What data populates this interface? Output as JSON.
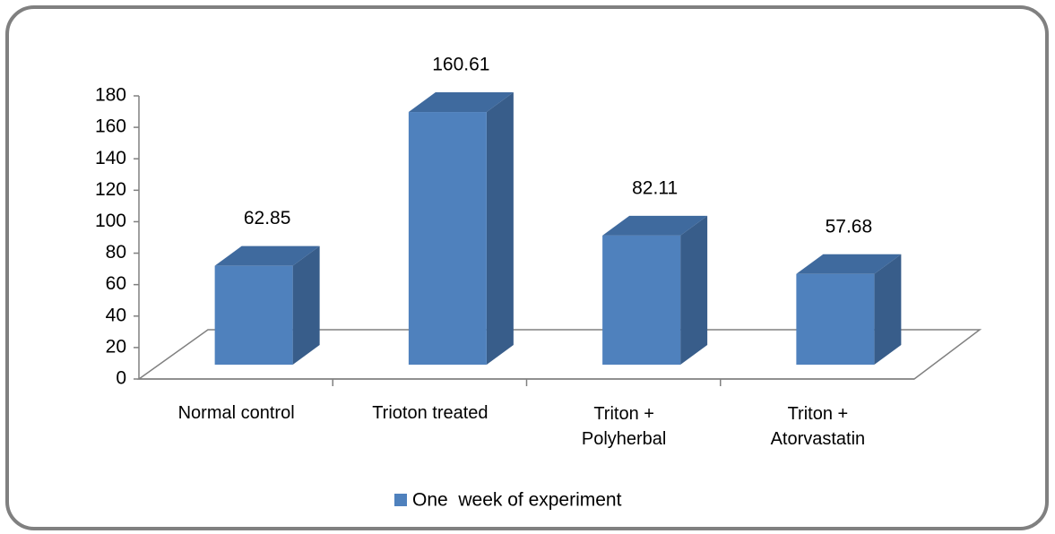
{
  "chart_data": {
    "type": "bar3d",
    "categories": [
      "Normal control",
      "Trioton treated",
      "Triton + Polyherbal",
      "Triton + Atorvastatin"
    ],
    "series": [
      {
        "name": "One  week of experiment",
        "color": "#4f81bd",
        "values": [
          62.85,
          160.61,
          82.11,
          57.68
        ]
      }
    ],
    "ylim": [
      0,
      180
    ],
    "yticks": [
      0,
      20,
      40,
      60,
      80,
      100,
      120,
      140,
      160,
      180
    ],
    "legend": "bottom",
    "data_labels": true
  }
}
